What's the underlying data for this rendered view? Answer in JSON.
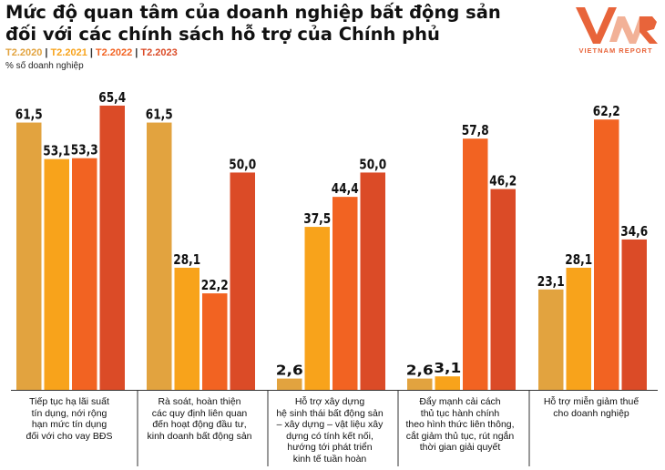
{
  "header": {
    "title_line1": "Mức độ quan tâm của doanh nghiệp bất động sản",
    "title_line2": "đối với các chính sách hỗ trợ của Chính phủ",
    "unit": "% số doanh nghiệp"
  },
  "logo": {
    "text": "VIETNAM REPORT",
    "colors": {
      "primary": "#e8643a",
      "secondary": "#f1a98c"
    }
  },
  "legend": {
    "separator": "|",
    "items": [
      {
        "label": "T2.2020",
        "color": "#e2a33f"
      },
      {
        "label": "T2.2021",
        "color": "#f8a31b"
      },
      {
        "label": "T2.2022",
        "color": "#f26322"
      },
      {
        "label": "T2.2023",
        "color": "#db4b27"
      }
    ]
  },
  "chart_data": {
    "type": "bar",
    "ylim": [
      0,
      70
    ],
    "grid": false,
    "legend_position": "top-left",
    "value_format": "comma-decimal",
    "categories": [
      "Tiếp tục hạ lãi suất tín dụng, nới rộng hạn mức tín dụng đối với cho vay BĐS",
      "Rà soát, hoàn thiện các quy định liên quan đến hoạt động đầu tư, kinh doanh bất động sản",
      "Hỗ trợ xây dựng hệ sinh thái bất động sản – xây dựng – vật liệu xây dựng có tính kết nối, hướng tới phát triển kinh tế tuần hoàn",
      "Đẩy mạnh cải cách thủ tục hành chính theo hình thức liên thông, cắt giảm thủ tục, rút ngắn thời gian giải quyết",
      "Hỗ trợ miễn giảm thuế cho doanh nghiệp"
    ],
    "category_lines": [
      [
        "Tiếp tục hạ lãi suất",
        "tín dụng, nới rộng",
        "hạn mức tín dụng",
        "đối với cho vay BĐS"
      ],
      [
        "Rà soát, hoàn thiện",
        "các quy định liên quan",
        "đến hoạt động đầu tư,",
        "kinh doanh bất động sản"
      ],
      [
        "Hỗ trợ xây dựng",
        "hệ sinh thái bất động sản",
        "– xây dựng – vật liệu xây",
        "dựng có tính kết nối,",
        "hướng tới phát triển",
        "kinh tế tuần hoàn"
      ],
      [
        "Đẩy mạnh cải cách",
        "thủ tục hành chính",
        "theo hình thức liên thông,",
        "cắt giảm thủ tục, rút ngắn",
        "thời gian giải quyết"
      ],
      [
        "Hỗ trợ miễn giảm thuế",
        "cho doanh nghiệp"
      ]
    ],
    "series": [
      {
        "name": "T2.2020",
        "values": [
          61.5,
          61.5,
          2.6,
          2.6,
          23.1
        ]
      },
      {
        "name": "T2.2021",
        "values": [
          53.1,
          28.1,
          37.5,
          3.1,
          28.1
        ]
      },
      {
        "name": "T2.2022",
        "values": [
          53.3,
          22.2,
          44.4,
          57.8,
          62.2
        ]
      },
      {
        "name": "T2.2023",
        "values": [
          65.4,
          50.0,
          50.0,
          46.2,
          34.6
        ]
      }
    ]
  }
}
